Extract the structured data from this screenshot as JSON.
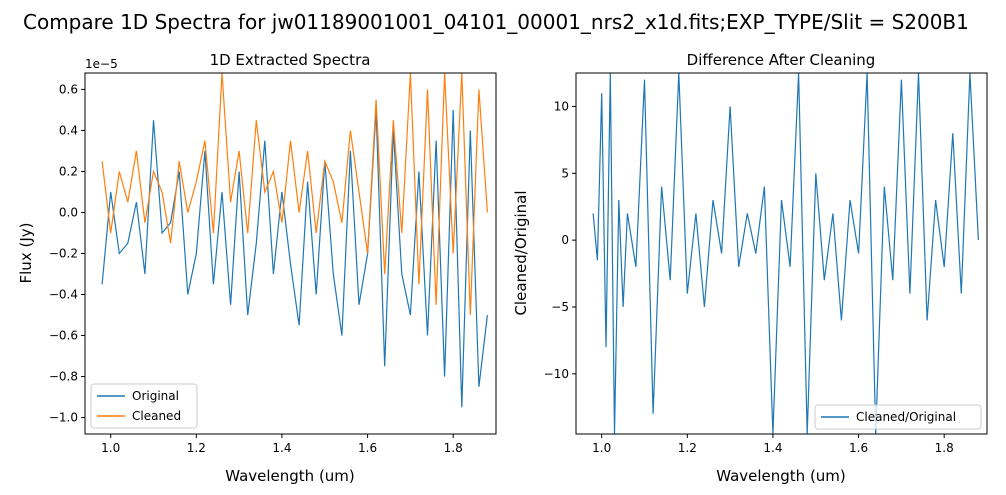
{
  "figure": {
    "suptitle": "Compare 1D Spectra for jw01189001001_04101_00001_nrs2_x1d.fits;EXP_TYPE/Slit = S200B1"
  },
  "chart_data": [
    {
      "type": "line",
      "title": "1D Extracted Spectra",
      "xlabel": "Wavelength (um)",
      "ylabel": "Flux (Jy)",
      "offset_text": "1e−5",
      "xlim": [
        0.94,
        1.9
      ],
      "ylim": [
        -1.08,
        0.68
      ],
      "xticks": [
        1.0,
        1.2,
        1.4,
        1.6,
        1.8
      ],
      "xtick_labels": [
        "1.0",
        "1.2",
        "1.4",
        "1.6",
        "1.8"
      ],
      "yticks": [
        -1.0,
        -0.8,
        -0.6,
        -0.4,
        -0.2,
        0.0,
        0.2,
        0.4,
        0.6
      ],
      "ytick_labels": [
        "−1.0",
        "−0.8",
        "−0.6",
        "−0.4",
        "−0.2",
        "0.0",
        "0.2",
        "0.4",
        "0.6"
      ],
      "legend_position": "lower-left",
      "series": [
        {
          "name": "Original",
          "color": "#1f77b4",
          "x": [
            0.98,
            1.0,
            1.02,
            1.04,
            1.06,
            1.08,
            1.1,
            1.12,
            1.14,
            1.16,
            1.18,
            1.2,
            1.22,
            1.24,
            1.26,
            1.28,
            1.3,
            1.32,
            1.34,
            1.36,
            1.38,
            1.4,
            1.42,
            1.44,
            1.46,
            1.48,
            1.5,
            1.52,
            1.54,
            1.56,
            1.58,
            1.6,
            1.62,
            1.64,
            1.66,
            1.68,
            1.7,
            1.72,
            1.74,
            1.76,
            1.78,
            1.8,
            1.82,
            1.84,
            1.86,
            1.88
          ],
          "y": [
            -0.35,
            0.1,
            -0.2,
            -0.15,
            0.05,
            -0.3,
            0.45,
            -0.1,
            -0.05,
            0.2,
            -0.4,
            -0.2,
            0.3,
            -0.35,
            0.1,
            -0.45,
            0.2,
            -0.5,
            -0.15,
            0.35,
            -0.3,
            0.1,
            -0.25,
            -0.55,
            0.15,
            -0.4,
            0.25,
            -0.3,
            -0.6,
            0.3,
            -0.45,
            -0.2,
            0.5,
            -0.75,
            0.4,
            -0.3,
            -0.5,
            0.2,
            -0.6,
            0.35,
            -0.8,
            0.5,
            -0.95,
            0.4,
            -0.85,
            -0.5
          ]
        },
        {
          "name": "Cleaned",
          "color": "#ff7f0e",
          "x": [
            0.98,
            1.0,
            1.02,
            1.04,
            1.06,
            1.08,
            1.1,
            1.12,
            1.14,
            1.16,
            1.18,
            1.2,
            1.22,
            1.24,
            1.26,
            1.28,
            1.3,
            1.32,
            1.34,
            1.36,
            1.38,
            1.4,
            1.42,
            1.44,
            1.46,
            1.48,
            1.5,
            1.52,
            1.54,
            1.56,
            1.58,
            1.6,
            1.62,
            1.64,
            1.66,
            1.68,
            1.7,
            1.72,
            1.74,
            1.76,
            1.78,
            1.8,
            1.82,
            1.84,
            1.86,
            1.88
          ],
          "y": [
            0.25,
            -0.1,
            0.2,
            0.05,
            0.3,
            -0.05,
            0.2,
            0.1,
            -0.15,
            0.25,
            0.0,
            0.15,
            0.35,
            -0.1,
            0.68,
            0.05,
            0.3,
            -0.1,
            0.45,
            0.1,
            0.2,
            -0.05,
            0.35,
            0.0,
            0.3,
            -0.1,
            0.25,
            0.15,
            -0.05,
            0.4,
            0.1,
            -0.2,
            0.55,
            -0.3,
            0.45,
            -0.1,
            0.68,
            -0.35,
            0.6,
            -0.45,
            0.68,
            -0.2,
            0.68,
            -0.5,
            0.6,
            0.0
          ]
        }
      ]
    },
    {
      "type": "line",
      "title": "Difference After Cleaning",
      "xlabel": "Wavelength (um)",
      "ylabel": "Cleaned/Original",
      "xlim": [
        0.94,
        1.9
      ],
      "ylim": [
        -14.5,
        12.5
      ],
      "xticks": [
        1.0,
        1.2,
        1.4,
        1.6,
        1.8
      ],
      "xtick_labels": [
        "1.0",
        "1.2",
        "1.4",
        "1.6",
        "1.8"
      ],
      "yticks": [
        -10,
        -5,
        0,
        5,
        10
      ],
      "ytick_labels": [
        "−10",
        "−5",
        "0",
        "5",
        "10"
      ],
      "legend_position": "lower-right",
      "series": [
        {
          "name": "Cleaned/Original",
          "color": "#1f77b4",
          "x": [
            0.98,
            0.99,
            1.0,
            1.01,
            1.02,
            1.03,
            1.04,
            1.05,
            1.06,
            1.08,
            1.1,
            1.12,
            1.14,
            1.16,
            1.18,
            1.2,
            1.22,
            1.24,
            1.26,
            1.28,
            1.3,
            1.32,
            1.34,
            1.36,
            1.38,
            1.4,
            1.42,
            1.44,
            1.46,
            1.48,
            1.5,
            1.52,
            1.54,
            1.56,
            1.58,
            1.6,
            1.62,
            1.64,
            1.66,
            1.68,
            1.7,
            1.72,
            1.74,
            1.76,
            1.78,
            1.8,
            1.82,
            1.84,
            1.86,
            1.88
          ],
          "y": [
            2,
            -1.5,
            11,
            -8,
            12.5,
            -14.5,
            3,
            -5,
            2,
            -2,
            12,
            -13,
            4,
            -3,
            12.5,
            -4,
            2,
            -5,
            3,
            -1,
            10,
            -2,
            2,
            -1,
            4,
            -14.5,
            3,
            -2,
            12.5,
            -14.5,
            5,
            -3,
            2,
            -6,
            3,
            -1,
            12.5,
            -14.5,
            4,
            -3,
            12,
            -4,
            12.5,
            -6,
            3,
            -2,
            8,
            -4,
            12.5,
            0
          ]
        }
      ]
    }
  ]
}
